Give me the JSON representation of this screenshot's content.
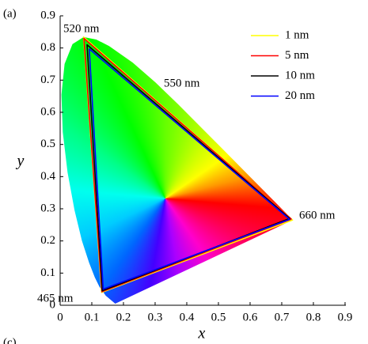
{
  "chart_data": {
    "type": "line",
    "panel_label": "(a)",
    "next_panel_label": "(c)",
    "xlabel": "x",
    "ylabel": "y",
    "xlim": [
      0,
      0.9
    ],
    "ylim": [
      0,
      0.9
    ],
    "xticks": [
      0,
      0.1,
      0.2,
      0.3,
      0.4,
      0.5,
      0.6,
      0.7,
      0.8,
      0.9
    ],
    "yticks": [
      0,
      0.1,
      0.2,
      0.3,
      0.4,
      0.5,
      0.6,
      0.7,
      0.8,
      0.9
    ],
    "annotations": [
      "520 nm",
      "550 nm",
      "660 nm",
      "465 nm"
    ],
    "legend": "upper right",
    "series": [
      {
        "name": "1 nm",
        "color": "#ffff00",
        "x": [
          0.074,
          0.734,
          0.131
        ],
        "y": [
          0.834,
          0.265,
          0.04
        ]
      },
      {
        "name": "5 nm",
        "color": "#ff0000",
        "x": [
          0.075,
          0.73,
          0.132
        ],
        "y": [
          0.83,
          0.268,
          0.042
        ]
      },
      {
        "name": "10 nm",
        "color": "#000000",
        "x": [
          0.085,
          0.725,
          0.133
        ],
        "y": [
          0.81,
          0.27,
          0.045
        ]
      },
      {
        "name": "20 nm",
        "color": "#0000ff",
        "x": [
          0.092,
          0.725,
          0.136
        ],
        "y": [
          0.797,
          0.267,
          0.05
        ]
      }
    ]
  }
}
